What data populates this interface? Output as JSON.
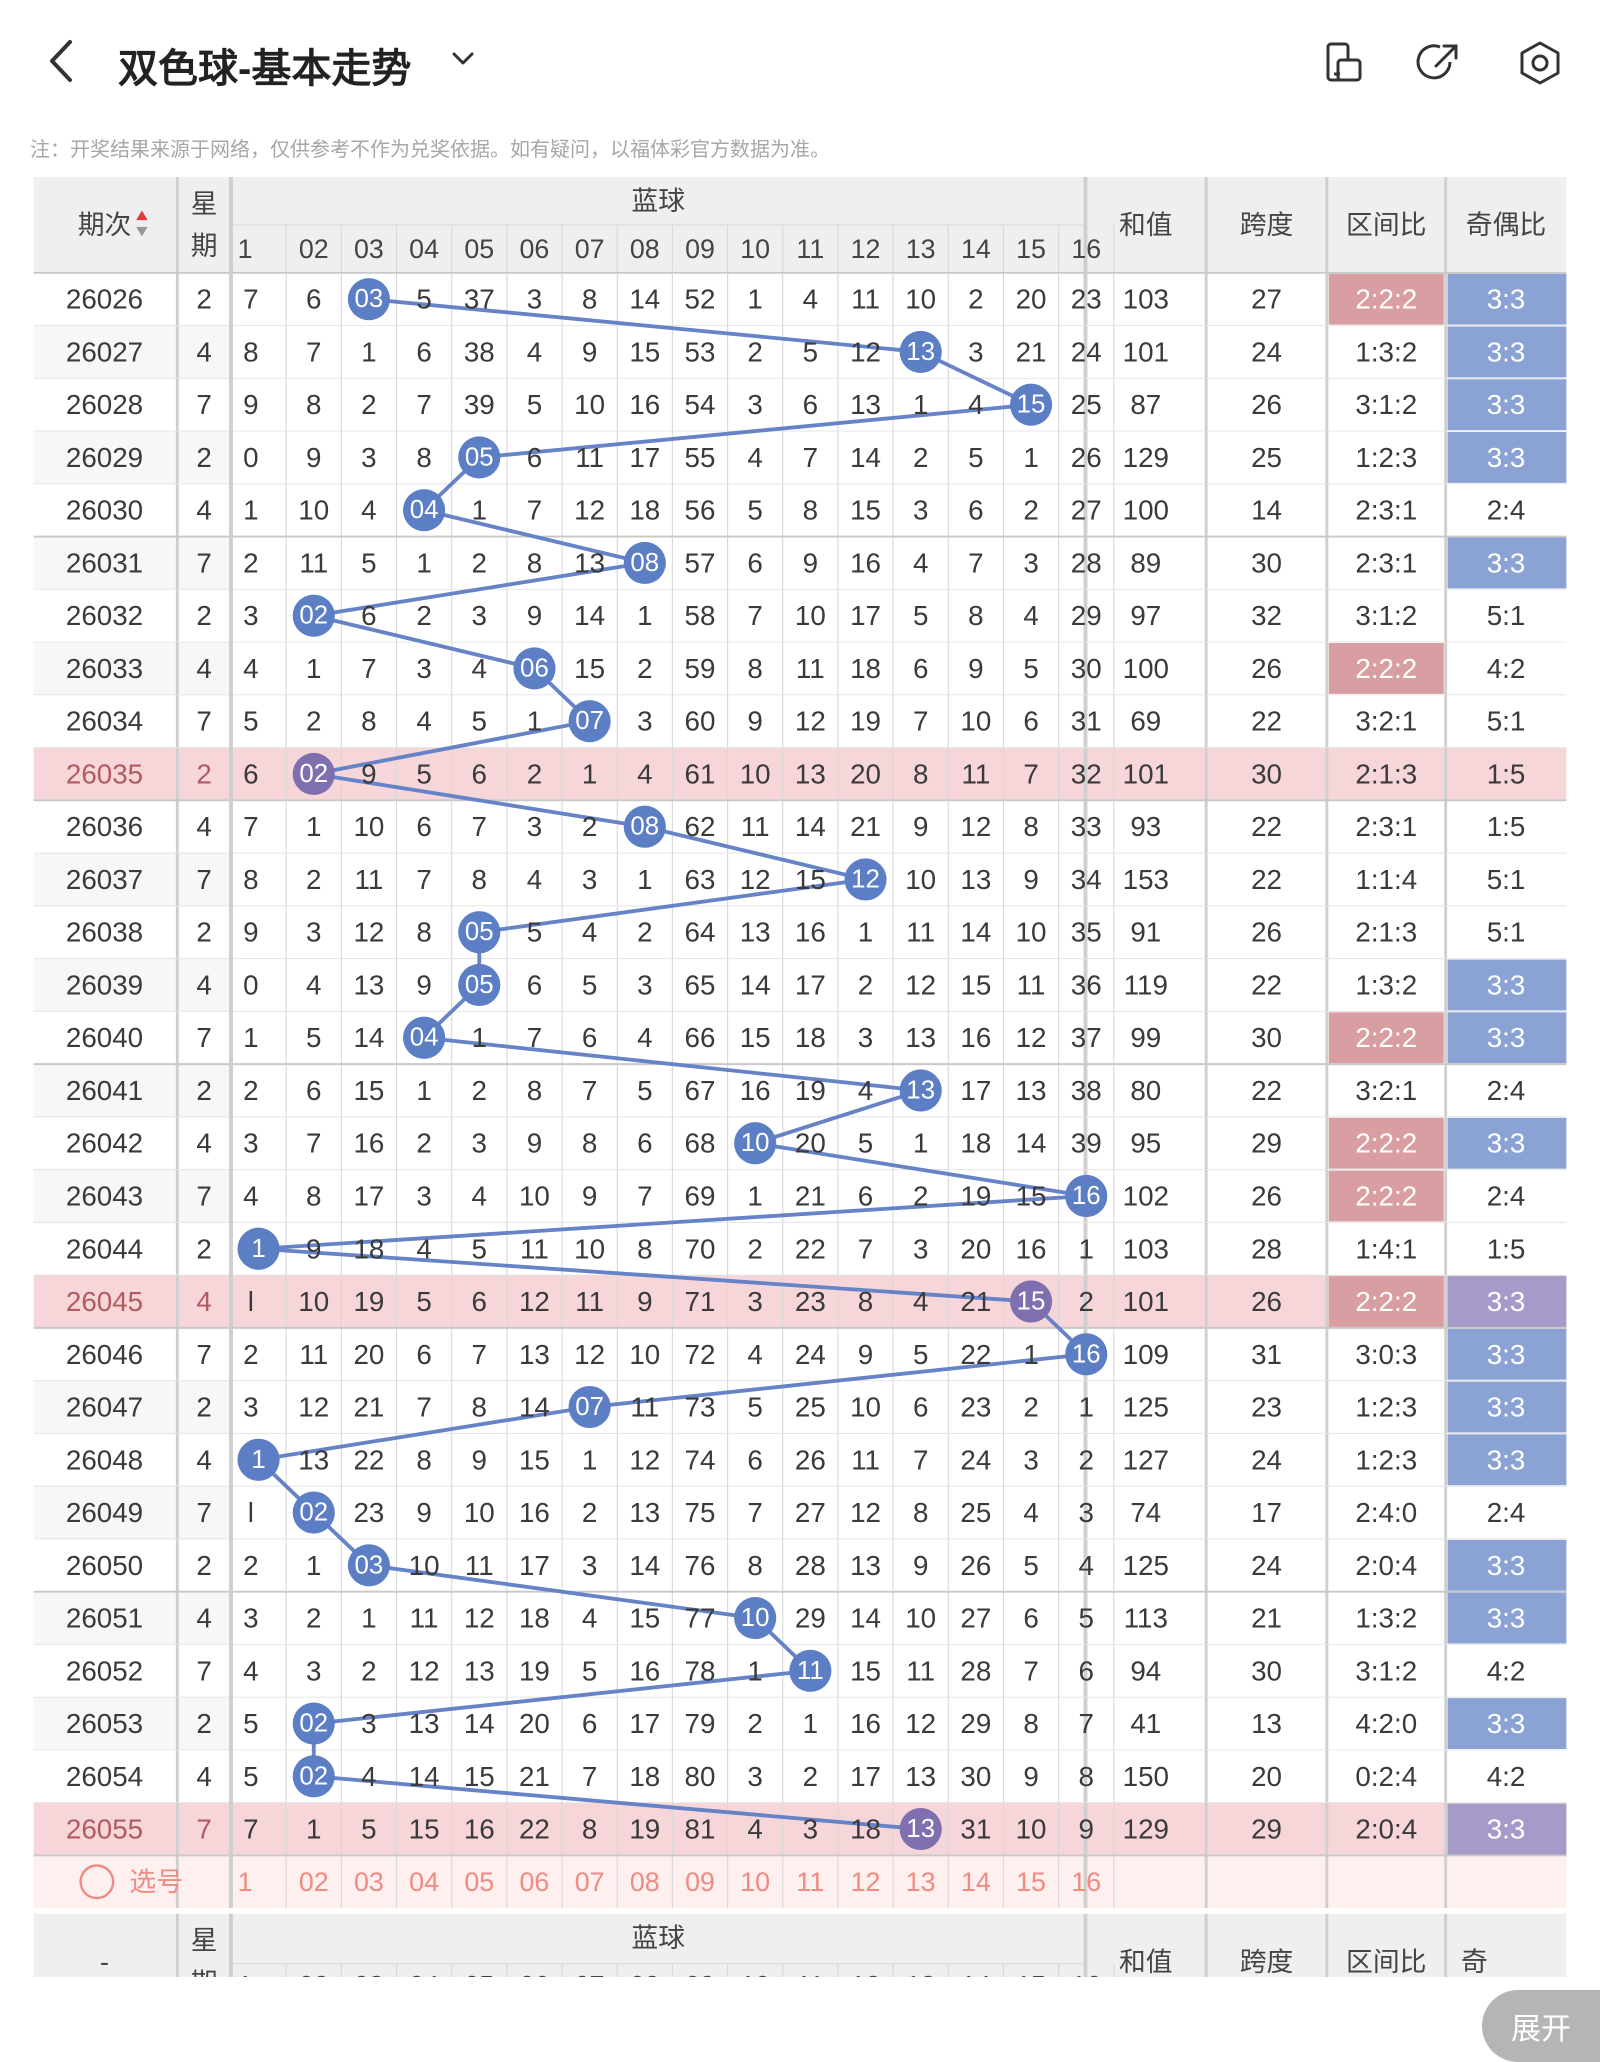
{
  "header": {
    "title": "双色球-基本走势",
    "note": "注：开奖结果来源于网络，仅供参考不作为兑奖依据。如有疑问，以福体彩官方数据为准。"
  },
  "table": {
    "col_issue": "期次",
    "col_week": [
      "星",
      "期"
    ],
    "col_blue": "蓝球",
    "col_sum": "和值",
    "col_span": "跨度",
    "col_range": "区间比",
    "col_odd": "奇偶比",
    "blue_numbers": [
      "1",
      "02",
      "03",
      "04",
      "05",
      "06",
      "07",
      "08",
      "09",
      "10",
      "11",
      "12",
      "13",
      "14",
      "15",
      "16"
    ],
    "rows": [
      {
        "issue": "26026",
        "week": "2",
        "miss": [
          "7",
          "6",
          "03",
          "5",
          "37",
          "3",
          "8",
          "14",
          "52",
          "1",
          "4",
          "11",
          "10",
          "2",
          "20",
          "23"
        ],
        "hit": 3,
        "sum": "103",
        "span": "27",
        "range": "2:2:2",
        "odd": "3:3",
        "range_hl": true,
        "odd_hl": true
      },
      {
        "issue": "26027",
        "week": "4",
        "miss": [
          "8",
          "7",
          "1",
          "6",
          "38",
          "4",
          "9",
          "15",
          "53",
          "2",
          "5",
          "12",
          "13",
          "3",
          "21",
          "24"
        ],
        "hit": 13,
        "sum": "101",
        "span": "24",
        "range": "1:3:2",
        "odd": "3:3",
        "range_hl": false,
        "odd_hl": true
      },
      {
        "issue": "26028",
        "week": "7",
        "miss": [
          "9",
          "8",
          "2",
          "7",
          "39",
          "5",
          "10",
          "16",
          "54",
          "3",
          "6",
          "13",
          "1",
          "4",
          "15",
          "25"
        ],
        "hit": 15,
        "sum": "87",
        "span": "26",
        "range": "3:1:2",
        "odd": "3:3",
        "range_hl": false,
        "odd_hl": true
      },
      {
        "issue": "26029",
        "week": "2",
        "miss": [
          "0",
          "9",
          "3",
          "8",
          "05",
          "6",
          "11",
          "17",
          "55",
          "4",
          "7",
          "14",
          "2",
          "5",
          "1",
          "26"
        ],
        "hit": 5,
        "sum": "129",
        "span": "25",
        "range": "1:2:3",
        "odd": "3:3",
        "range_hl": false,
        "odd_hl": true
      },
      {
        "issue": "26030",
        "week": "4",
        "miss": [
          "1",
          "10",
          "4",
          "04",
          "1",
          "7",
          "12",
          "18",
          "56",
          "5",
          "8",
          "15",
          "3",
          "6",
          "2",
          "27"
        ],
        "hit": 4,
        "sum": "100",
        "span": "14",
        "range": "2:3:1",
        "odd": "2:4",
        "range_hl": false,
        "odd_hl": false
      },
      {
        "issue": "26031",
        "week": "7",
        "miss": [
          "2",
          "11",
          "5",
          "1",
          "2",
          "8",
          "13",
          "08",
          "57",
          "6",
          "9",
          "16",
          "4",
          "7",
          "3",
          "28"
        ],
        "hit": 8,
        "sum": "89",
        "span": "30",
        "range": "2:3:1",
        "odd": "3:3",
        "range_hl": false,
        "odd_hl": true
      },
      {
        "issue": "26032",
        "week": "2",
        "miss": [
          "3",
          "02",
          "6",
          "2",
          "3",
          "9",
          "14",
          "1",
          "58",
          "7",
          "10",
          "17",
          "5",
          "8",
          "4",
          "29"
        ],
        "hit": 2,
        "sum": "97",
        "span": "32",
        "range": "3:1:2",
        "odd": "5:1",
        "range_hl": false,
        "odd_hl": false
      },
      {
        "issue": "26033",
        "week": "4",
        "miss": [
          "4",
          "1",
          "7",
          "3",
          "4",
          "06",
          "15",
          "2",
          "59",
          "8",
          "11",
          "18",
          "6",
          "9",
          "5",
          "30"
        ],
        "hit": 6,
        "sum": "100",
        "span": "26",
        "range": "2:2:2",
        "odd": "4:2",
        "range_hl": true,
        "odd_hl": false
      },
      {
        "issue": "26034",
        "week": "7",
        "miss": [
          "5",
          "2",
          "8",
          "4",
          "5",
          "1",
          "07",
          "3",
          "60",
          "9",
          "12",
          "19",
          "7",
          "10",
          "6",
          "31"
        ],
        "hit": 7,
        "sum": "69",
        "span": "22",
        "range": "3:2:1",
        "odd": "5:1",
        "range_hl": false,
        "odd_hl": false
      },
      {
        "issue": "26035",
        "week": "2",
        "miss": [
          "6",
          "02",
          "9",
          "5",
          "6",
          "2",
          "1",
          "4",
          "61",
          "10",
          "13",
          "20",
          "8",
          "11",
          "7",
          "32"
        ],
        "hit": 2,
        "sum": "101",
        "span": "30",
        "range": "2:1:3",
        "odd": "1:5",
        "range_hl": false,
        "odd_hl": false,
        "pink": true
      },
      {
        "issue": "26036",
        "week": "4",
        "miss": [
          "7",
          "1",
          "10",
          "6",
          "7",
          "3",
          "2",
          "08",
          "62",
          "11",
          "14",
          "21",
          "9",
          "12",
          "8",
          "33"
        ],
        "hit": 8,
        "sum": "93",
        "span": "22",
        "range": "2:3:1",
        "odd": "1:5",
        "range_hl": false,
        "odd_hl": false
      },
      {
        "issue": "26037",
        "week": "7",
        "miss": [
          "8",
          "2",
          "11",
          "7",
          "8",
          "4",
          "3",
          "1",
          "63",
          "12",
          "15",
          "12",
          "10",
          "13",
          "9",
          "34"
        ],
        "hit": 12,
        "sum": "153",
        "span": "22",
        "range": "1:1:4",
        "odd": "5:1",
        "range_hl": false,
        "odd_hl": false
      },
      {
        "issue": "26038",
        "week": "2",
        "miss": [
          "9",
          "3",
          "12",
          "8",
          "05",
          "5",
          "4",
          "2",
          "64",
          "13",
          "16",
          "1",
          "11",
          "14",
          "10",
          "35"
        ],
        "hit": 5,
        "sum": "91",
        "span": "26",
        "range": "2:1:3",
        "odd": "5:1",
        "range_hl": false,
        "odd_hl": false
      },
      {
        "issue": "26039",
        "week": "4",
        "miss": [
          "0",
          "4",
          "13",
          "9",
          "05",
          "6",
          "5",
          "3",
          "65",
          "14",
          "17",
          "2",
          "12",
          "15",
          "11",
          "36"
        ],
        "hit": 5,
        "sum": "119",
        "span": "22",
        "range": "1:3:2",
        "odd": "3:3",
        "range_hl": false,
        "odd_hl": true
      },
      {
        "issue": "26040",
        "week": "7",
        "miss": [
          "1",
          "5",
          "14",
          "04",
          "1",
          "7",
          "6",
          "4",
          "66",
          "15",
          "18",
          "3",
          "13",
          "16",
          "12",
          "37"
        ],
        "hit": 4,
        "sum": "99",
        "span": "30",
        "range": "2:2:2",
        "odd": "3:3",
        "range_hl": true,
        "odd_hl": true
      },
      {
        "issue": "26041",
        "week": "2",
        "miss": [
          "2",
          "6",
          "15",
          "1",
          "2",
          "8",
          "7",
          "5",
          "67",
          "16",
          "19",
          "4",
          "13",
          "17",
          "13",
          "38"
        ],
        "hit": 13,
        "sum": "80",
        "span": "22",
        "range": "3:2:1",
        "odd": "2:4",
        "range_hl": false,
        "odd_hl": false
      },
      {
        "issue": "26042",
        "week": "4",
        "miss": [
          "3",
          "7",
          "16",
          "2",
          "3",
          "9",
          "8",
          "6",
          "68",
          "10",
          "20",
          "5",
          "1",
          "18",
          "14",
          "39"
        ],
        "hit": 10,
        "sum": "95",
        "span": "29",
        "range": "2:2:2",
        "odd": "3:3",
        "range_hl": true,
        "odd_hl": true
      },
      {
        "issue": "26043",
        "week": "7",
        "miss": [
          "4",
          "8",
          "17",
          "3",
          "4",
          "10",
          "9",
          "7",
          "69",
          "1",
          "21",
          "6",
          "2",
          "19",
          "15",
          "16"
        ],
        "hit": 16,
        "sum": "102",
        "span": "26",
        "range": "2:2:2",
        "odd": "2:4",
        "range_hl": true,
        "odd_hl": false
      },
      {
        "issue": "26044",
        "week": "2",
        "miss": [
          "1",
          "9",
          "18",
          "4",
          "5",
          "11",
          "10",
          "8",
          "70",
          "2",
          "22",
          "7",
          "3",
          "20",
          "16",
          "1"
        ],
        "hit": 1,
        "sum": "103",
        "span": "28",
        "range": "1:4:1",
        "odd": "1:5",
        "range_hl": false,
        "odd_hl": false
      },
      {
        "issue": "26045",
        "week": "4",
        "miss": [
          "l",
          "10",
          "19",
          "5",
          "6",
          "12",
          "11",
          "9",
          "71",
          "3",
          "23",
          "8",
          "4",
          "21",
          "15",
          "2"
        ],
        "hit": 15,
        "sum": "101",
        "span": "26",
        "range": "2:2:2",
        "odd": "3:3",
        "range_hl": true,
        "odd_hl": true,
        "pink": true
      },
      {
        "issue": "26046",
        "week": "7",
        "miss": [
          "2",
          "11",
          "20",
          "6",
          "7",
          "13",
          "12",
          "10",
          "72",
          "4",
          "24",
          "9",
          "5",
          "22",
          "1",
          "16"
        ],
        "hit": 16,
        "sum": "109",
        "span": "31",
        "range": "3:0:3",
        "odd": "3:3",
        "range_hl": false,
        "odd_hl": true
      },
      {
        "issue": "26047",
        "week": "2",
        "miss": [
          "3",
          "12",
          "21",
          "7",
          "8",
          "14",
          "07",
          "11",
          "73",
          "5",
          "25",
          "10",
          "6",
          "23",
          "2",
          "1"
        ],
        "hit": 7,
        "sum": "125",
        "span": "23",
        "range": "1:2:3",
        "odd": "3:3",
        "range_hl": false,
        "odd_hl": true
      },
      {
        "issue": "26048",
        "week": "4",
        "miss": [
          "1",
          "13",
          "22",
          "8",
          "9",
          "15",
          "1",
          "12",
          "74",
          "6",
          "26",
          "11",
          "7",
          "24",
          "3",
          "2"
        ],
        "hit": 1,
        "sum": "127",
        "span": "24",
        "range": "1:2:3",
        "odd": "3:3",
        "range_hl": false,
        "odd_hl": true
      },
      {
        "issue": "26049",
        "week": "7",
        "miss": [
          "l",
          "02",
          "23",
          "9",
          "10",
          "16",
          "2",
          "13",
          "75",
          "7",
          "27",
          "12",
          "8",
          "25",
          "4",
          "3"
        ],
        "hit": 2,
        "sum": "74",
        "span": "17",
        "range": "2:4:0",
        "odd": "2:4",
        "range_hl": false,
        "odd_hl": false
      },
      {
        "issue": "26050",
        "week": "2",
        "miss": [
          "2",
          "1",
          "03",
          "10",
          "11",
          "17",
          "3",
          "14",
          "76",
          "8",
          "28",
          "13",
          "9",
          "26",
          "5",
          "4"
        ],
        "hit": 3,
        "sum": "125",
        "span": "24",
        "range": "2:0:4",
        "odd": "3:3",
        "range_hl": false,
        "odd_hl": true
      },
      {
        "issue": "26051",
        "week": "4",
        "miss": [
          "3",
          "2",
          "1",
          "11",
          "12",
          "18",
          "4",
          "15",
          "77",
          "10",
          "29",
          "14",
          "10",
          "27",
          "6",
          "5"
        ],
        "hit": 10,
        "sum": "113",
        "span": "21",
        "range": "1:3:2",
        "odd": "3:3",
        "range_hl": false,
        "odd_hl": true
      },
      {
        "issue": "26052",
        "week": "7",
        "miss": [
          "4",
          "3",
          "2",
          "12",
          "13",
          "19",
          "5",
          "16",
          "78",
          "1",
          "11",
          "15",
          "11",
          "28",
          "7",
          "6"
        ],
        "hit": 11,
        "sum": "94",
        "span": "30",
        "range": "3:1:2",
        "odd": "4:2",
        "range_hl": false,
        "odd_hl": false
      },
      {
        "issue": "26053",
        "week": "2",
        "miss": [
          "5",
          "02",
          "3",
          "13",
          "14",
          "20",
          "6",
          "17",
          "79",
          "2",
          "1",
          "16",
          "12",
          "29",
          "8",
          "7"
        ],
        "hit": 2,
        "sum": "41",
        "span": "13",
        "range": "4:2:0",
        "odd": "3:3",
        "range_hl": false,
        "odd_hl": true
      },
      {
        "issue": "26054",
        "week": "4",
        "miss": [
          "5",
          "02",
          "4",
          "14",
          "15",
          "21",
          "7",
          "18",
          "80",
          "3",
          "2",
          "17",
          "13",
          "30",
          "9",
          "8"
        ],
        "hit": 2,
        "sum": "150",
        "span": "20",
        "range": "0:2:4",
        "odd": "4:2",
        "range_hl": false,
        "odd_hl": false
      },
      {
        "issue": "26055",
        "week": "7",
        "miss": [
          "7",
          "1",
          "5",
          "15",
          "16",
          "22",
          "8",
          "19",
          "81",
          "4",
          "3",
          "18",
          "13",
          "31",
          "10",
          "9"
        ],
        "hit": 13,
        "sum": "129",
        "span": "29",
        "range": "2:0:4",
        "odd": "3:3",
        "range_hl": false,
        "odd_hl": true,
        "pink": true
      }
    ],
    "select_label": "选号",
    "footer_issue": "-",
    "footer_odd": "奇",
    "expand": "展开"
  },
  "colors": {
    "ball": "#5b7ec5",
    "ball_pink_row": "#7f6fae",
    "line": "#6583c6",
    "pink_row": "#f6d6d9",
    "range_hl": "#d99ea2",
    "odd_hl": "#8aa2d4",
    "select_num": "#f08a82"
  }
}
